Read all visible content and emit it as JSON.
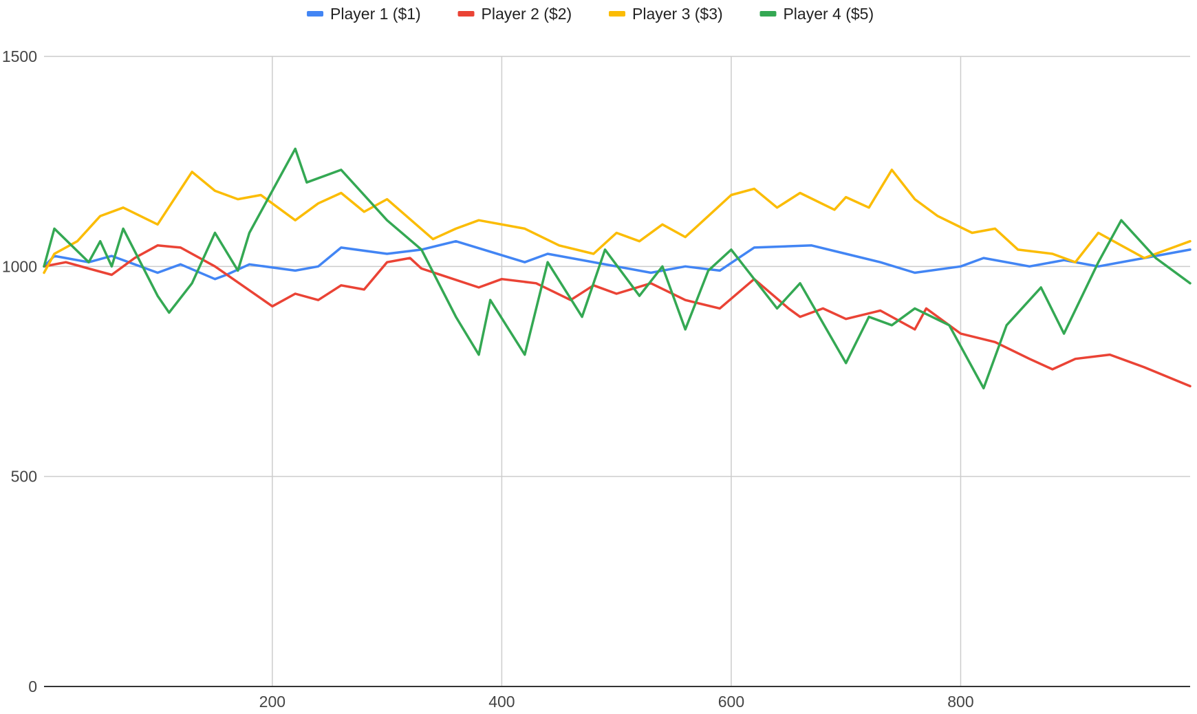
{
  "chart_data": {
    "type": "line",
    "title": "",
    "xlabel": "",
    "ylabel": "",
    "xlim": [
      1,
      1000
    ],
    "ylim": [
      0,
      1500
    ],
    "x_ticks": [
      200,
      400,
      600,
      800
    ],
    "y_ticks": [
      0,
      500,
      1000,
      1500
    ],
    "grid": true,
    "legend_position": "top",
    "series": [
      {
        "name": "Player 1 ($1)",
        "color": "#4285F4",
        "points": [
          [
            1,
            1000
          ],
          [
            10,
            1025
          ],
          [
            40,
            1010
          ],
          [
            60,
            1025
          ],
          [
            100,
            985
          ],
          [
            120,
            1005
          ],
          [
            150,
            970
          ],
          [
            160,
            980
          ],
          [
            180,
            1005
          ],
          [
            220,
            990
          ],
          [
            240,
            1000
          ],
          [
            260,
            1045
          ],
          [
            300,
            1030
          ],
          [
            330,
            1040
          ],
          [
            360,
            1060
          ],
          [
            420,
            1010
          ],
          [
            440,
            1030
          ],
          [
            500,
            1000
          ],
          [
            530,
            985
          ],
          [
            560,
            1000
          ],
          [
            590,
            990
          ],
          [
            620,
            1045
          ],
          [
            670,
            1050
          ],
          [
            700,
            1030
          ],
          [
            730,
            1010
          ],
          [
            760,
            985
          ],
          [
            800,
            1000
          ],
          [
            820,
            1020
          ],
          [
            860,
            1000
          ],
          [
            890,
            1015
          ],
          [
            920,
            1000
          ],
          [
            960,
            1020
          ],
          [
            1000,
            1040
          ]
        ]
      },
      {
        "name": "Player 2 ($2)",
        "color": "#EA4335",
        "points": [
          [
            1,
            1000
          ],
          [
            20,
            1010
          ],
          [
            40,
            995
          ],
          [
            60,
            980
          ],
          [
            80,
            1020
          ],
          [
            100,
            1050
          ],
          [
            120,
            1045
          ],
          [
            150,
            1000
          ],
          [
            200,
            905
          ],
          [
            220,
            935
          ],
          [
            240,
            920
          ],
          [
            260,
            955
          ],
          [
            280,
            945
          ],
          [
            300,
            1010
          ],
          [
            320,
            1020
          ],
          [
            330,
            995
          ],
          [
            380,
            950
          ],
          [
            400,
            970
          ],
          [
            430,
            960
          ],
          [
            460,
            920
          ],
          [
            480,
            955
          ],
          [
            500,
            935
          ],
          [
            530,
            960
          ],
          [
            560,
            920
          ],
          [
            590,
            900
          ],
          [
            620,
            970
          ],
          [
            650,
            900
          ],
          [
            660,
            880
          ],
          [
            680,
            900
          ],
          [
            700,
            875
          ],
          [
            730,
            895
          ],
          [
            760,
            850
          ],
          [
            770,
            900
          ],
          [
            800,
            840
          ],
          [
            830,
            820
          ],
          [
            860,
            780
          ],
          [
            880,
            755
          ],
          [
            900,
            780
          ],
          [
            930,
            790
          ],
          [
            960,
            760
          ],
          [
            1000,
            715
          ]
        ]
      },
      {
        "name": "Player 3 ($3)",
        "color": "#FBBC04",
        "points": [
          [
            1,
            985
          ],
          [
            10,
            1030
          ],
          [
            30,
            1060
          ],
          [
            50,
            1120
          ],
          [
            70,
            1140
          ],
          [
            100,
            1100
          ],
          [
            130,
            1225
          ],
          [
            150,
            1180
          ],
          [
            170,
            1160
          ],
          [
            190,
            1170
          ],
          [
            220,
            1110
          ],
          [
            240,
            1150
          ],
          [
            260,
            1175
          ],
          [
            280,
            1130
          ],
          [
            300,
            1160
          ],
          [
            340,
            1065
          ],
          [
            360,
            1090
          ],
          [
            380,
            1110
          ],
          [
            420,
            1090
          ],
          [
            450,
            1050
          ],
          [
            480,
            1030
          ],
          [
            500,
            1080
          ],
          [
            520,
            1060
          ],
          [
            540,
            1100
          ],
          [
            560,
            1070
          ],
          [
            580,
            1120
          ],
          [
            600,
            1170
          ],
          [
            620,
            1185
          ],
          [
            640,
            1140
          ],
          [
            660,
            1175
          ],
          [
            690,
            1135
          ],
          [
            700,
            1165
          ],
          [
            720,
            1140
          ],
          [
            740,
            1230
          ],
          [
            760,
            1160
          ],
          [
            780,
            1120
          ],
          [
            810,
            1080
          ],
          [
            830,
            1090
          ],
          [
            850,
            1040
          ],
          [
            880,
            1030
          ],
          [
            900,
            1010
          ],
          [
            920,
            1080
          ],
          [
            940,
            1050
          ],
          [
            960,
            1020
          ],
          [
            980,
            1040
          ],
          [
            1000,
            1060
          ]
        ]
      },
      {
        "name": "Player 4 ($5)",
        "color": "#34A853",
        "points": [
          [
            1,
            1000
          ],
          [
            10,
            1090
          ],
          [
            40,
            1010
          ],
          [
            50,
            1060
          ],
          [
            60,
            1000
          ],
          [
            70,
            1090
          ],
          [
            100,
            930
          ],
          [
            110,
            890
          ],
          [
            130,
            960
          ],
          [
            150,
            1080
          ],
          [
            170,
            990
          ],
          [
            180,
            1080
          ],
          [
            220,
            1280
          ],
          [
            230,
            1200
          ],
          [
            260,
            1230
          ],
          [
            300,
            1110
          ],
          [
            330,
            1040
          ],
          [
            360,
            880
          ],
          [
            380,
            790
          ],
          [
            390,
            920
          ],
          [
            420,
            790
          ],
          [
            440,
            1010
          ],
          [
            470,
            880
          ],
          [
            490,
            1040
          ],
          [
            520,
            930
          ],
          [
            540,
            1000
          ],
          [
            560,
            850
          ],
          [
            580,
            990
          ],
          [
            600,
            1040
          ],
          [
            620,
            970
          ],
          [
            640,
            900
          ],
          [
            660,
            960
          ],
          [
            700,
            770
          ],
          [
            720,
            880
          ],
          [
            740,
            860
          ],
          [
            760,
            900
          ],
          [
            790,
            860
          ],
          [
            820,
            710
          ],
          [
            840,
            860
          ],
          [
            870,
            950
          ],
          [
            890,
            840
          ],
          [
            920,
            1010
          ],
          [
            940,
            1110
          ],
          [
            970,
            1020
          ],
          [
            1000,
            960
          ]
        ]
      }
    ]
  }
}
